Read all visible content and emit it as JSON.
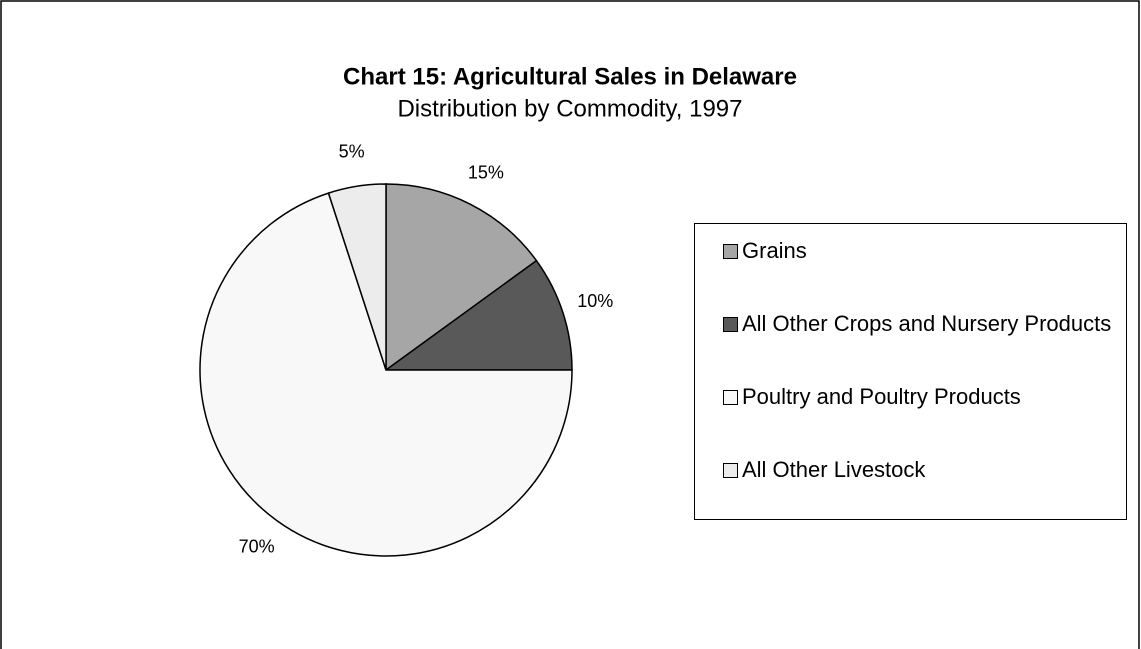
{
  "chart_data": {
    "type": "pie",
    "title": "Chart 15: Agricultural Sales in Delaware",
    "subtitle": "Distribution by Commodity, 1997",
    "categories": [
      "Grains",
      "All Other Crops and Nursery Products",
      "Poultry and Poultry Products",
      "All Other Livestock"
    ],
    "values": [
      15,
      10,
      70,
      5
    ],
    "value_labels": [
      "15%",
      "10%",
      "70%",
      "5%"
    ],
    "colors": [
      "#a6a6a6",
      "#595959",
      "#f8f8f8",
      "#ececec"
    ],
    "legend": "right"
  }
}
